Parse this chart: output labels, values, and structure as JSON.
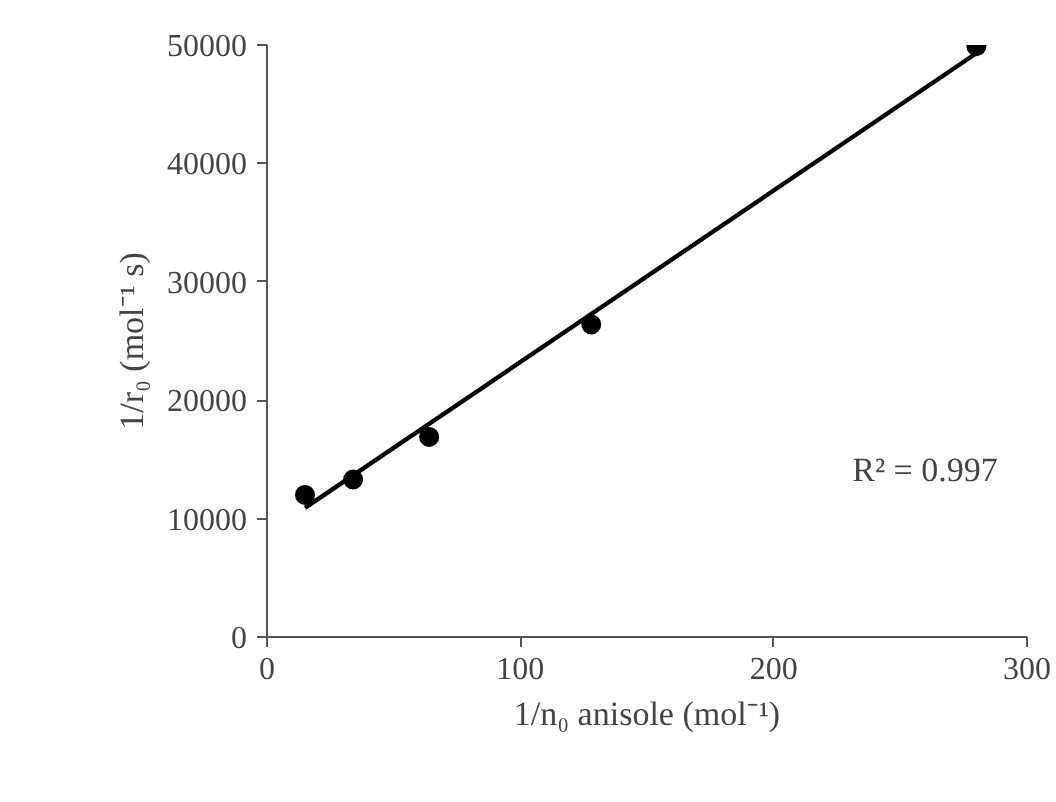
{
  "chart_data": {
    "type": "scatter",
    "xlabel": "1/n₀ anisole (mol⁻¹)",
    "ylabel": "1/r₀ (mol⁻¹ s)",
    "series": [
      {
        "color": "#000000",
        "marker": "circle",
        "x": [
          15,
          34,
          64,
          128,
          280
        ],
        "values": [
          12000,
          13300,
          16900,
          26400,
          49900
        ]
      },
      {
        "type": "line",
        "color": "#000000",
        "line_style": "solid",
        "x": [
          15,
          280
        ],
        "values": [
          10900,
          49300
        ]
      }
    ],
    "xlim": [
      0,
      300
    ],
    "xticks": [
      0,
      100,
      200,
      300
    ],
    "ylim": [
      0,
      50000
    ],
    "yticks": [
      0,
      10000,
      20000,
      30000,
      40000,
      50000
    ],
    "grid": false,
    "annotations": [
      "R² = 0.997"
    ]
  }
}
